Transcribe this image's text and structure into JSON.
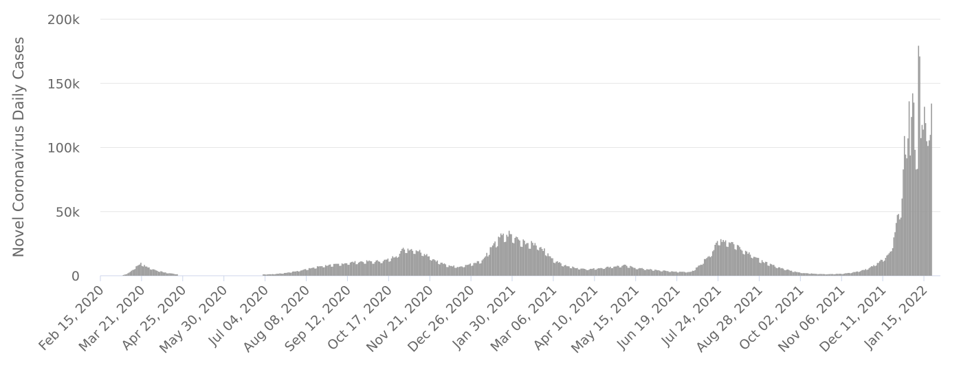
{
  "chart_data": {
    "type": "bar",
    "ylabel": "Novel Coronavirus Daily Cases",
    "xlabel": "",
    "title": "",
    "ylim": [
      0,
      200000
    ],
    "y_ticks": [
      {
        "value": 0,
        "label": "0"
      },
      {
        "value": 50000,
        "label": "50k"
      },
      {
        "value": 100000,
        "label": "100k"
      },
      {
        "value": 150000,
        "label": "150k"
      },
      {
        "value": 200000,
        "label": "200k"
      }
    ],
    "x_range": [
      "2020-02-15",
      "2022-01-29"
    ],
    "x_ticks": [
      {
        "date": "2020-02-15",
        "label": "Feb 15, 2020"
      },
      {
        "date": "2020-03-21",
        "label": "Mar 21, 2020"
      },
      {
        "date": "2020-04-25",
        "label": "Apr 25, 2020"
      },
      {
        "date": "2020-05-30",
        "label": "May 30, 2020"
      },
      {
        "date": "2020-07-04",
        "label": "Jul 04, 2020"
      },
      {
        "date": "2020-08-08",
        "label": "Aug 08, 2020"
      },
      {
        "date": "2020-09-12",
        "label": "Sep 12, 2020"
      },
      {
        "date": "2020-10-17",
        "label": "Oct 17, 2020"
      },
      {
        "date": "2020-11-21",
        "label": "Nov 21, 2020"
      },
      {
        "date": "2020-12-26",
        "label": "Dec 26, 2020"
      },
      {
        "date": "2021-01-30",
        "label": "Jan 30, 2021"
      },
      {
        "date": "2021-03-06",
        "label": "Mar 06, 2021"
      },
      {
        "date": "2021-04-10",
        "label": "Apr 10, 2021"
      },
      {
        "date": "2021-05-15",
        "label": "May 15, 2021"
      },
      {
        "date": "2021-06-19",
        "label": "Jun 19, 2021"
      },
      {
        "date": "2021-07-24",
        "label": "Jul 24, 2021"
      },
      {
        "date": "2021-08-28",
        "label": "Aug 28, 2021"
      },
      {
        "date": "2021-10-02",
        "label": "Oct 02, 2021"
      },
      {
        "date": "2021-11-06",
        "label": "Nov 06, 2021"
      },
      {
        "date": "2021-12-11",
        "label": "Dec 11, 2021"
      },
      {
        "date": "2022-01-15",
        "label": "Jan 15, 2022"
      }
    ],
    "grid": true,
    "bar_color": "#999999",
    "series": [
      {
        "points": [
          [
            "2020-03-05",
            500
          ],
          [
            "2020-03-08",
            1500
          ],
          [
            "2020-03-11",
            3000
          ],
          [
            "2020-03-14",
            5500
          ],
          [
            "2020-03-17",
            7500
          ],
          [
            "2020-03-20",
            9500
          ],
          [
            "2020-03-23",
            8000
          ],
          [
            "2020-03-26",
            6500
          ],
          [
            "2020-03-29",
            5500
          ],
          [
            "2020-04-01",
            4500
          ],
          [
            "2020-04-05",
            3500
          ],
          [
            "2020-04-09",
            2500
          ],
          [
            "2020-04-13",
            2000
          ],
          [
            "2020-04-17",
            1500
          ],
          [
            "2020-04-20",
            1200
          ],
          [
            "2020-07-01",
            1000
          ],
          [
            "2020-07-10",
            1200
          ],
          [
            "2020-07-20",
            2000
          ],
          [
            "2020-07-30",
            3500
          ],
          [
            "2020-08-10",
            5500
          ],
          [
            "2020-08-20",
            7500
          ],
          [
            "2020-09-01",
            8500
          ],
          [
            "2020-09-12",
            10000
          ],
          [
            "2020-09-25",
            11000
          ],
          [
            "2020-10-05",
            11000
          ],
          [
            "2020-10-15",
            12000
          ],
          [
            "2020-10-22",
            15000
          ],
          [
            "2020-10-30",
            21000
          ],
          [
            "2020-11-08",
            20000
          ],
          [
            "2020-11-15",
            18000
          ],
          [
            "2020-11-25",
            12000
          ],
          [
            "2020-12-05",
            8000
          ],
          [
            "2020-12-15",
            7000
          ],
          [
            "2020-12-26",
            9000
          ],
          [
            "2021-01-05",
            12000
          ],
          [
            "2021-01-12",
            22000
          ],
          [
            "2021-01-20",
            30000
          ],
          [
            "2021-01-27",
            32000
          ],
          [
            "2021-02-05",
            27000
          ],
          [
            "2021-02-12",
            25000
          ],
          [
            "2021-02-20",
            24000
          ],
          [
            "2021-02-28",
            18000
          ],
          [
            "2021-03-06",
            12000
          ],
          [
            "2021-03-15",
            8000
          ],
          [
            "2021-03-25",
            6000
          ],
          [
            "2021-04-05",
            5000
          ],
          [
            "2021-04-15",
            6000
          ],
          [
            "2021-04-25",
            7000
          ],
          [
            "2021-05-05",
            8000
          ],
          [
            "2021-05-15",
            6000
          ],
          [
            "2021-05-25",
            5000
          ],
          [
            "2021-06-05",
            4000
          ],
          [
            "2021-06-19",
            3000
          ],
          [
            "2021-07-01",
            3000
          ],
          [
            "2021-07-08",
            8000
          ],
          [
            "2021-07-15",
            15000
          ],
          [
            "2021-07-20",
            20000
          ],
          [
            "2021-07-24",
            28000
          ],
          [
            "2021-07-30",
            27000
          ],
          [
            "2021-08-06",
            25000
          ],
          [
            "2021-08-14",
            20000
          ],
          [
            "2021-08-22",
            16000
          ],
          [
            "2021-08-28",
            12000
          ],
          [
            "2021-09-05",
            9000
          ],
          [
            "2021-09-15",
            6000
          ],
          [
            "2021-09-25",
            3500
          ],
          [
            "2021-10-05",
            2000
          ],
          [
            "2021-10-15",
            1500
          ],
          [
            "2021-10-25",
            1200
          ],
          [
            "2021-11-06",
            1500
          ],
          [
            "2021-11-15",
            2500
          ],
          [
            "2021-11-25",
            4500
          ],
          [
            "2021-12-01",
            7000
          ],
          [
            "2021-12-06",
            10000
          ],
          [
            "2021-12-11",
            13000
          ],
          [
            "2021-12-16",
            17000
          ],
          [
            "2021-12-20",
            28000
          ],
          [
            "2021-12-24",
            50000
          ],
          [
            "2021-12-27",
            55000
          ],
          [
            "2021-12-29",
            100000
          ],
          [
            "2021-12-31",
            92000
          ],
          [
            "2022-01-02",
            160000
          ],
          [
            "2022-01-03",
            93000
          ],
          [
            "2022-01-05",
            135000
          ],
          [
            "2022-01-06",
            125000
          ],
          [
            "2022-01-07",
            97000
          ],
          [
            "2022-01-09",
            98000
          ],
          [
            "2022-01-10",
            178000
          ],
          [
            "2022-01-11",
            160000
          ],
          [
            "2022-01-12",
            110000
          ],
          [
            "2022-01-14",
            110000
          ],
          [
            "2022-01-15",
            155000
          ],
          [
            "2022-01-16",
            140000
          ],
          [
            "2022-01-17",
            101000
          ],
          [
            "2022-01-19",
            101000
          ],
          [
            "2022-01-20",
            114000
          ],
          [
            "2022-01-21",
            132000
          ]
        ]
      }
    ]
  }
}
